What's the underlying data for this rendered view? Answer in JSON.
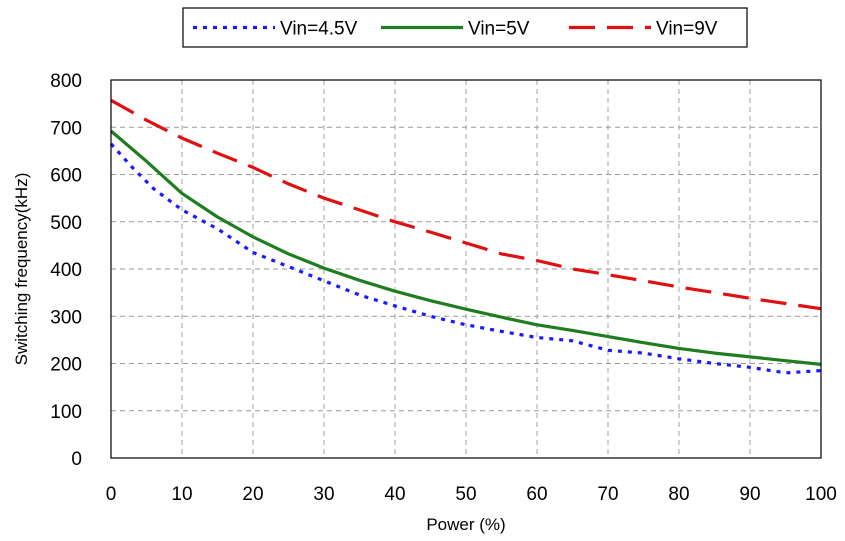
{
  "chart_data": {
    "type": "line",
    "title": "",
    "xlabel": "Power (%)",
    "ylabel": "Switching frequency(kHz)",
    "xlim": [
      0,
      100
    ],
    "ylim": [
      0,
      800
    ],
    "x_ticks": [
      0,
      10,
      20,
      30,
      40,
      50,
      60,
      70,
      80,
      90,
      100
    ],
    "y_ticks": [
      0,
      100,
      200,
      300,
      400,
      500,
      600,
      700,
      800
    ],
    "grid": true,
    "legend_position": "top-center",
    "series": [
      {
        "name": "Vin=4.5V",
        "color": "#1a1aff",
        "style": "dotted",
        "points": [
          [
            0,
            665
          ],
          [
            3,
            615
          ],
          [
            6,
            570
          ],
          [
            10,
            525
          ],
          [
            15,
            485
          ],
          [
            20,
            435
          ],
          [
            25,
            405
          ],
          [
            30,
            375
          ],
          [
            35,
            345
          ],
          [
            40,
            322
          ],
          [
            45,
            300
          ],
          [
            50,
            282
          ],
          [
            55,
            268
          ],
          [
            60,
            255
          ],
          [
            65,
            248
          ],
          [
            70,
            228
          ],
          [
            75,
            222
          ],
          [
            80,
            210
          ],
          [
            85,
            200
          ],
          [
            90,
            192
          ],
          [
            95,
            180
          ],
          [
            100,
            185
          ]
        ]
      },
      {
        "name": "Vin=5V",
        "color": "#1e7d1e",
        "style": "solid",
        "points": [
          [
            0,
            692
          ],
          [
            5,
            628
          ],
          [
            10,
            560
          ],
          [
            15,
            510
          ],
          [
            20,
            468
          ],
          [
            25,
            432
          ],
          [
            30,
            402
          ],
          [
            35,
            376
          ],
          [
            40,
            353
          ],
          [
            45,
            333
          ],
          [
            50,
            315
          ],
          [
            55,
            298
          ],
          [
            60,
            282
          ],
          [
            65,
            270
          ],
          [
            70,
            257
          ],
          [
            75,
            244
          ],
          [
            80,
            232
          ],
          [
            85,
            222
          ],
          [
            90,
            214
          ],
          [
            95,
            206
          ],
          [
            100,
            198
          ]
        ]
      },
      {
        "name": "Vin=9V",
        "color": "#e01010",
        "style": "dashed",
        "points": [
          [
            0,
            757
          ],
          [
            5,
            715
          ],
          [
            10,
            677
          ],
          [
            15,
            645
          ],
          [
            20,
            615
          ],
          [
            25,
            580
          ],
          [
            30,
            550
          ],
          [
            35,
            525
          ],
          [
            40,
            500
          ],
          [
            45,
            478
          ],
          [
            50,
            455
          ],
          [
            55,
            432
          ],
          [
            60,
            418
          ],
          [
            65,
            400
          ],
          [
            70,
            388
          ],
          [
            75,
            375
          ],
          [
            80,
            362
          ],
          [
            85,
            350
          ],
          [
            90,
            338
          ],
          [
            95,
            327
          ],
          [
            100,
            316
          ]
        ]
      }
    ]
  }
}
